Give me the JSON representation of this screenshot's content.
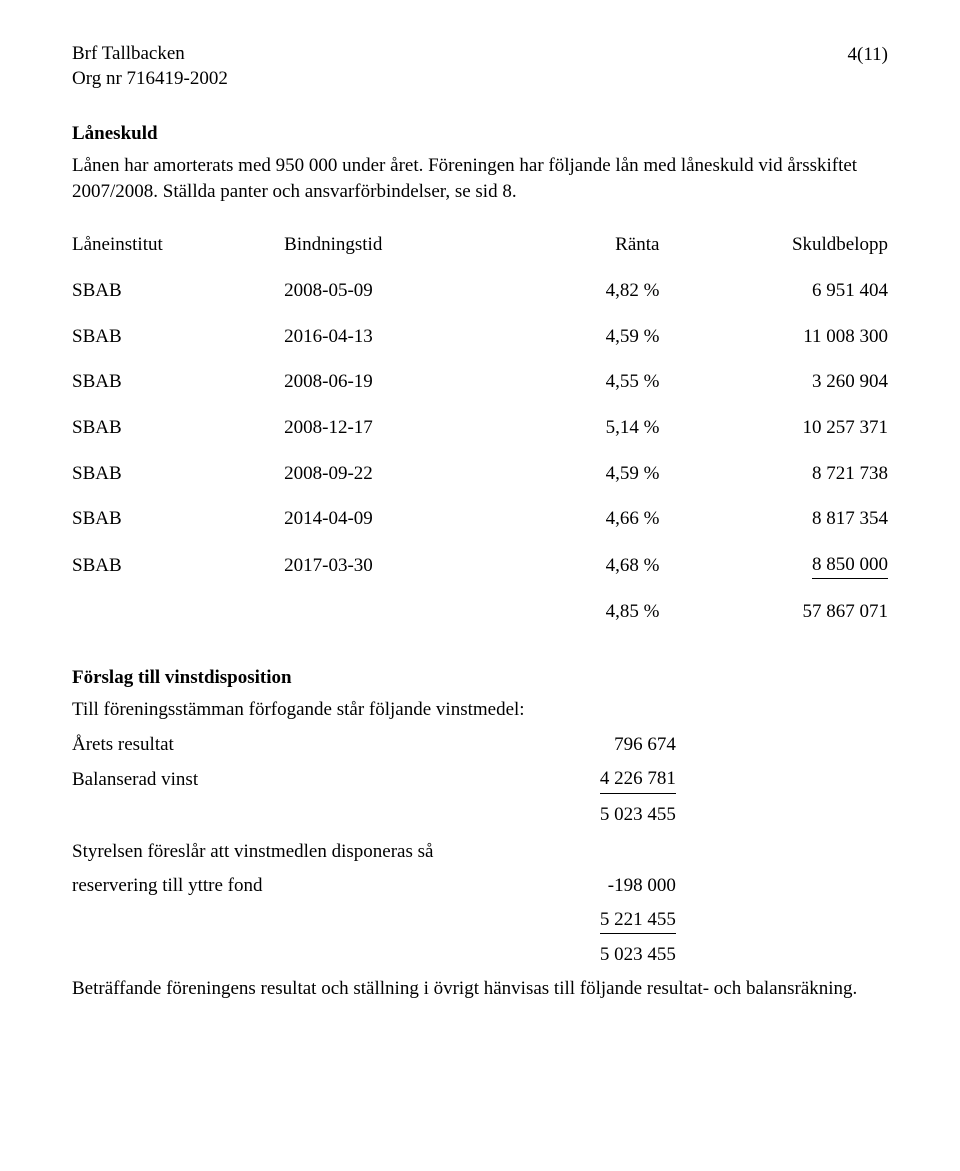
{
  "header": {
    "company_name": "Brf Tallbacken",
    "org_no": "Org nr 716419-2002",
    "page": "4(11)"
  },
  "section1": {
    "title": "Låneskuld",
    "para": "Lånen har amorterats med 950 000 under året. Föreningen har följande lån med låneskuld vid årsskiftet 2007/2008. Ställda panter och ansvarförbindelser, se sid 8."
  },
  "loan_table": {
    "headers": {
      "institution": "Låneinstitut",
      "binding": "Bindningstid",
      "rate": "Ränta",
      "balance": "Skuldbelopp"
    },
    "rows": [
      {
        "inst": "SBAB",
        "bind": "2008-05-09",
        "rate": "4,82 %",
        "bal": "6 951 404"
      },
      {
        "inst": "SBAB",
        "bind": "2016-04-13",
        "rate": "4,59 %",
        "bal": "11 008 300"
      },
      {
        "inst": "SBAB",
        "bind": "2008-06-19",
        "rate": "4,55 %",
        "bal": "3 260 904"
      },
      {
        "inst": "SBAB",
        "bind": "2008-12-17",
        "rate": "5,14 %",
        "bal": "10 257 371"
      },
      {
        "inst": "SBAB",
        "bind": "2008-09-22",
        "rate": "4,59 %",
        "bal": "8 721 738"
      },
      {
        "inst": "SBAB",
        "bind": "2014-04-09",
        "rate": "4,66 %",
        "bal": "8 817 354"
      },
      {
        "inst": "SBAB",
        "bind": "2017-03-30",
        "rate": "4,68 %",
        "bal": "8 850 000"
      }
    ],
    "total": {
      "rate": "4,85 %",
      "bal": "57 867 071"
    }
  },
  "section2": {
    "title": "Förslag till vinstdisposition",
    "intro": "Till föreningsstämman förfogande står följande vinstmedel:",
    "rows1": [
      {
        "label": "Årets resultat",
        "value": "796 674",
        "underline": false
      },
      {
        "label": "Balanserad vinst",
        "value": "4 226 781",
        "underline": true
      },
      {
        "label": "",
        "value": "5 023 455",
        "underline": false
      }
    ],
    "mid_line": "Styrelsen föreslår att vinstmedlen disponeras så",
    "rows2": [
      {
        "label": "reservering till yttre fond",
        "value": "-198 000",
        "underline": false
      },
      {
        "label": "",
        "value": "5 221 455",
        "underline": true
      },
      {
        "label": "",
        "value": "5 023 455",
        "underline": false
      }
    ],
    "footer": "Beträffande föreningens resultat och ställning i övrigt hänvisas till följande resultat- och balansräkning."
  }
}
